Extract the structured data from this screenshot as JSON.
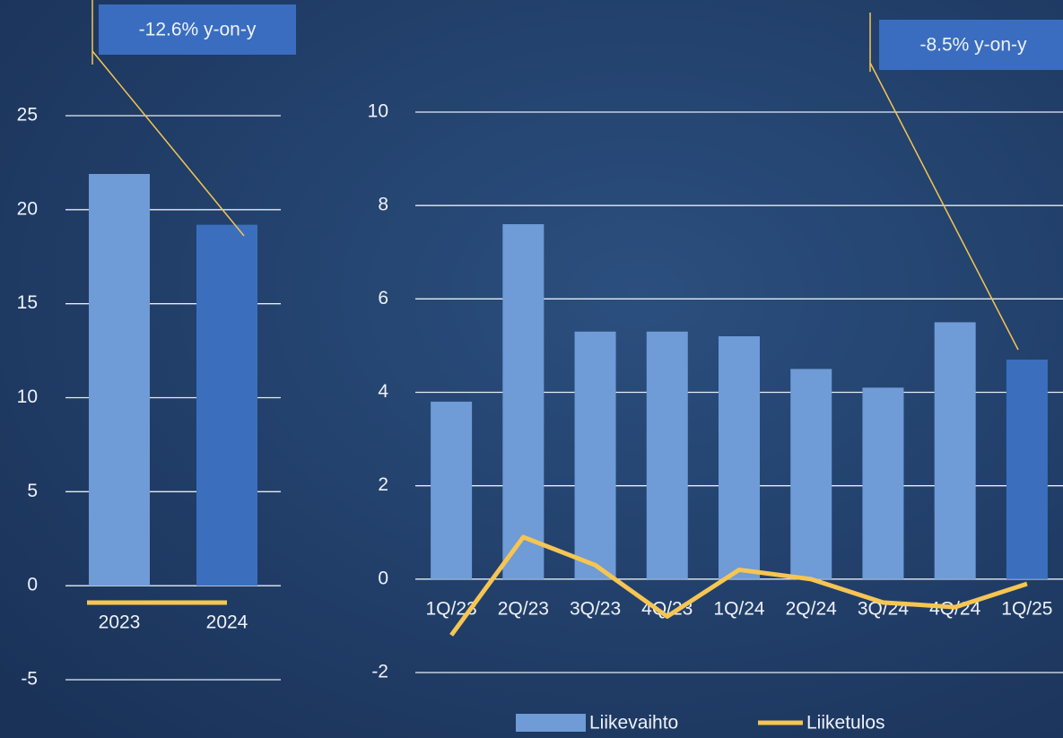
{
  "chart_data": [
    {
      "type": "bar",
      "categories": [
        "2023",
        "2024"
      ],
      "series": [
        {
          "name": "Liikevaihto",
          "colors": [
            "#6f9bd6",
            "#3b6fbd"
          ],
          "values": [
            21.9,
            19.2
          ]
        },
        {
          "name": "Liiketulos",
          "type": "line",
          "color": "#f6c552",
          "values": [
            -0.9,
            -0.9
          ]
        }
      ],
      "ylim": [
        -5,
        25
      ],
      "yticks": [
        -5,
        0,
        5,
        10,
        15,
        20,
        25
      ],
      "grid": true,
      "annotations": [
        "-12.6% y-on-y"
      ]
    },
    {
      "type": "bar",
      "categories": [
        "1Q/23",
        "2Q/23",
        "3Q/23",
        "4Q/23",
        "1Q/24",
        "2Q/24",
        "3Q/24",
        "4Q/24",
        "1Q/25"
      ],
      "series": [
        {
          "name": "Liikevaihto",
          "colors": [
            "#6f9bd6",
            "#6f9bd6",
            "#6f9bd6",
            "#6f9bd6",
            "#6f9bd6",
            "#6f9bd6",
            "#6f9bd6",
            "#6f9bd6",
            "#3b6fbd"
          ],
          "values": [
            3.8,
            7.6,
            5.3,
            5.3,
            5.2,
            4.5,
            4.1,
            5.5,
            4.7
          ]
        },
        {
          "name": "Liiketulos",
          "type": "line",
          "color": "#f6c552",
          "values": [
            -1.2,
            0.9,
            0.3,
            -0.8,
            0.2,
            0.0,
            -0.5,
            -0.6,
            -0.1
          ]
        }
      ],
      "ylim": [
        -2,
        10
      ],
      "yticks": [
        -2,
        0,
        2,
        4,
        6,
        8,
        10
      ],
      "grid": true,
      "annotations": [
        "-8.5% y-on-y"
      ],
      "legend": "bottom"
    }
  ]
}
